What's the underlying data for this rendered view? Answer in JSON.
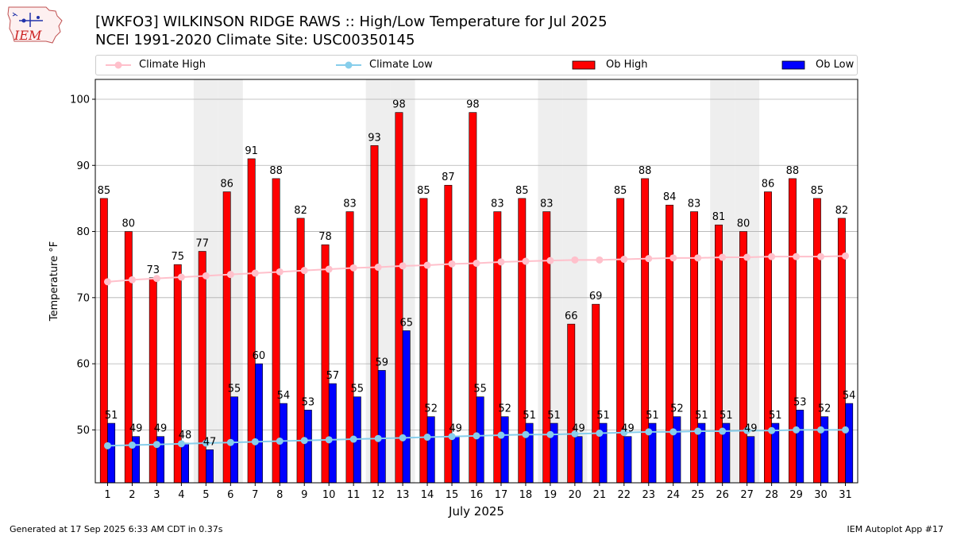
{
  "header": {
    "title_line1": "[WKFO3] WILKINSON RIDGE RAWS :: High/Low Temperature for Jul 2025",
    "title_line2": "NCEI 1991-2020 Climate Site: USC00350145",
    "logo_text": "IEM"
  },
  "footer": {
    "generated": "Generated at 17 Sep 2025 6:33 AM CDT in 0.37s",
    "app": "IEM Autoplot App #17"
  },
  "colors": {
    "ob_high": "#ff0000",
    "ob_low": "#0000ff",
    "climate_high": "#ffc0cb",
    "climate_low": "#87ceeb",
    "weekend_shade": "#eeeeee",
    "grid": "#b0b0b0"
  },
  "chart_data": {
    "type": "bar",
    "xlabel": "July 2025",
    "ylabel": "Temperature °F",
    "ylim": [
      42,
      103
    ],
    "yticks": [
      50,
      60,
      70,
      80,
      90,
      100
    ],
    "grid": "horizontal",
    "legend": "top",
    "categories": [
      "1",
      "2",
      "3",
      "4",
      "5",
      "6",
      "7",
      "8",
      "9",
      "10",
      "11",
      "12",
      "13",
      "14",
      "15",
      "16",
      "17",
      "18",
      "19",
      "20",
      "21",
      "22",
      "23",
      "24",
      "25",
      "26",
      "27",
      "28",
      "29",
      "30",
      "31"
    ],
    "shaded_days": [
      5,
      6,
      12,
      13,
      19,
      20,
      26,
      27
    ],
    "series": [
      {
        "name": "Climate High",
        "kind": "line",
        "values": [
          72.4,
          72.7,
          72.9,
          73.1,
          73.3,
          73.5,
          73.7,
          73.9,
          74.1,
          74.3,
          74.5,
          74.6,
          74.8,
          74.9,
          75.1,
          75.2,
          75.4,
          75.5,
          75.6,
          75.7,
          75.7,
          75.8,
          75.9,
          76.0,
          76.0,
          76.1,
          76.1,
          76.2,
          76.2,
          76.2,
          76.3
        ]
      },
      {
        "name": "Climate Low",
        "kind": "line",
        "values": [
          47.6,
          47.7,
          47.8,
          47.9,
          48.0,
          48.1,
          48.2,
          48.3,
          48.4,
          48.5,
          48.6,
          48.7,
          48.8,
          48.9,
          49.0,
          49.1,
          49.2,
          49.3,
          49.3,
          49.4,
          49.5,
          49.6,
          49.7,
          49.7,
          49.8,
          49.8,
          49.9,
          49.9,
          50.0,
          50.0,
          50.0
        ]
      },
      {
        "name": "Ob High",
        "kind": "bar",
        "values": [
          85,
          80,
          73,
          75,
          77,
          86,
          91,
          88,
          82,
          78,
          83,
          93,
          98,
          85,
          87,
          98,
          83,
          85,
          83,
          66,
          69,
          85,
          88,
          84,
          83,
          81,
          80,
          86,
          88,
          85,
          82
        ]
      },
      {
        "name": "Ob Low",
        "kind": "bar",
        "values": [
          51,
          49,
          49,
          48,
          47,
          55,
          60,
          54,
          53,
          57,
          55,
          59,
          65,
          52,
          49,
          55,
          52,
          51,
          51,
          49,
          51,
          49,
          51,
          52,
          51,
          51,
          49,
          51,
          53,
          52,
          54
        ]
      }
    ]
  }
}
